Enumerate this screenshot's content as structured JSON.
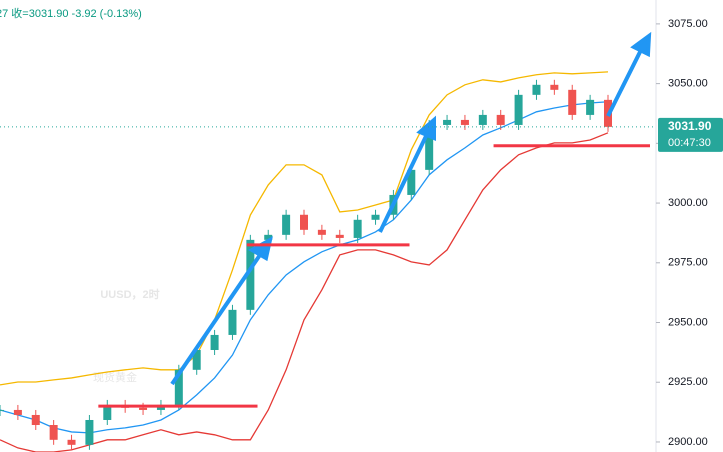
{
  "chart_data": {
    "type": "candlestick",
    "subtitle": "27 收=3031.90 -3.92 (-0.13%)",
    "watermark": [
      "UUSD，2时",
      "现货黄金"
    ],
    "categories": [
      null,
      null,
      null,
      null,
      null,
      null,
      null,
      null,
      null,
      null,
      null,
      null,
      null,
      null,
      null,
      null,
      null,
      null,
      null,
      null,
      null,
      null,
      null,
      null,
      null,
      null,
      null,
      null,
      null,
      null,
      null,
      null,
      null,
      null,
      null
    ],
    "closes": [
      2913.4,
      2911.3,
      2907.1,
      2900.9,
      2898.8,
      2909.2,
      2915.5,
      2914.3,
      2913.4,
      2915.5,
      2930.2,
      2938.5,
      2944.8,
      2955.3,
      2984.6,
      2986.7,
      2995.1,
      2988.8,
      2986.7,
      2985.4,
      2993.0,
      2995.1,
      3003.4,
      3013.9,
      3032.7,
      3034.8,
      3032.7,
      3036.9,
      3032.7,
      3045.3,
      3049.5,
      3047.4,
      3036.9,
      3043.2,
      3031.9
    ],
    "up_color": "#26a69a",
    "down_color": "#ef5350",
    "series": [
      {
        "color": "#f5b800",
        "values": [
          2923.9,
          2925.1,
          2925.1,
          2926.0,
          2926.8,
          2928.1,
          2929.3,
          2930.2,
          2931.0,
          2930.2,
          2930.2,
          2936.4,
          2951.1,
          2972.0,
          2995.0,
          3007.6,
          3016.0,
          3016.0,
          3011.8,
          2996.3,
          2997.1,
          2999.2,
          3001.3,
          3022.3,
          3036.9,
          3045.3,
          3049.5,
          3051.6,
          3050.7,
          3052.4,
          3053.7,
          3054.5,
          3054.1,
          3054.5,
          3054.9
        ]
      },
      {
        "color": "#2196f3",
        "values": [
          2913.4,
          2911.3,
          2909.2,
          2905.9,
          2904.2,
          2903.8,
          2905.1,
          2905.9,
          2907.1,
          2909.2,
          2913.4,
          2919.7,
          2926.8,
          2936.4,
          2951.1,
          2961.6,
          2969.9,
          2975.4,
          2979.6,
          2982.5,
          2984.6,
          2987.9,
          2993.0,
          3001.3,
          3011.8,
          3018.1,
          3023.1,
          3028.5,
          3031.5,
          3034.8,
          3038.2,
          3039.8,
          3041.1,
          3041.9,
          3042.4
        ]
      },
      {
        "color": "#e53935",
        "values": [
          2900.9,
          2897.5,
          2895.8,
          2895.8,
          2896.7,
          2898.8,
          2900.9,
          2900.9,
          2903.0,
          2905.1,
          2903.0,
          2904.2,
          2903.0,
          2900.9,
          2900.9,
          2913.4,
          2930.2,
          2951.1,
          2963.7,
          2978.3,
          2980.4,
          2980.4,
          2978.3,
          2975.4,
          2974.1,
          2980.4,
          2993.0,
          3005.5,
          3013.9,
          3020.2,
          3023.1,
          3025.2,
          3025.2,
          3026.4,
          3029.4
        ]
      }
    ],
    "levels": [
      {
        "value": 2915,
        "from": 5.5,
        "to": 14.4
      },
      {
        "value": 2982.5,
        "from": 13.8,
        "to": 22.9
      },
      {
        "value": 3024,
        "from": 27.6,
        "to": 37.4
      }
    ],
    "level_color": "#f23645",
    "last_price": {
      "value": 3031.9,
      "label": "3031.90"
    },
    "countdown": "00:47:30",
    "ylim": [
      2895.8,
      3085
    ],
    "yticks": [
      {
        "value": 2900,
        "label": "2900.00"
      },
      {
        "value": 2925,
        "label": "2925.00"
      },
      {
        "value": 2950,
        "label": "2950.00"
      },
      {
        "value": 2975,
        "label": "2975.00"
      },
      {
        "value": 3000,
        "label": "3000.00"
      },
      {
        "value": 3025,
        "label": "3025.00"
      },
      {
        "value": 3050,
        "label": "3050.00"
      },
      {
        "value": 3075,
        "label": "3075.00"
      }
    ]
  }
}
